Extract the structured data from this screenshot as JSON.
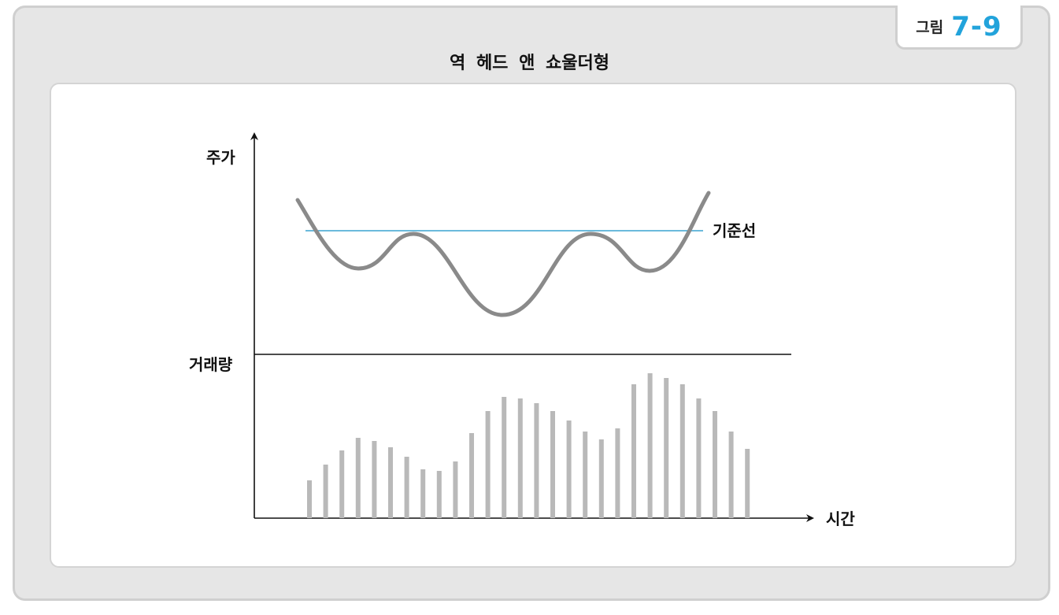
{
  "figure": {
    "label": "그림",
    "number": "7-9"
  },
  "title": "역 헤드 앤 쇼울더형",
  "labels": {
    "price_axis": "주가",
    "volume_axis": "거래량",
    "baseline": "기준선",
    "time_axis": "시간"
  },
  "colors": {
    "accent": "#22a3db",
    "price_line": "#8a8a8a",
    "baseline": "#3aa3d0",
    "volume_bar": "#b9b9b9",
    "panel_bg": "#e6e6e6"
  },
  "volume_bars": [
    0.24,
    0.34,
    0.43,
    0.51,
    0.49,
    0.45,
    0.39,
    0.31,
    0.3,
    0.36,
    0.54,
    0.68,
    0.77,
    0.76,
    0.73,
    0.68,
    0.62,
    0.55,
    0.5,
    0.57,
    0.85,
    0.92,
    0.89,
    0.85,
    0.76,
    0.68,
    0.55,
    0.44
  ]
}
